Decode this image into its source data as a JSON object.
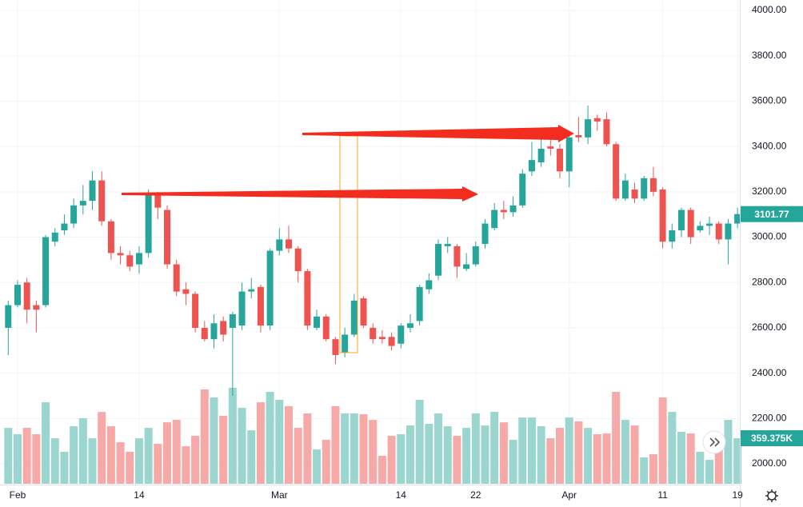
{
  "chart_data": {
    "type": "candlestick",
    "categories": [
      null,
      "Feb",
      null,
      null,
      null,
      null,
      null,
      null,
      null,
      null,
      null,
      null,
      null,
      null,
      "14",
      null,
      null,
      null,
      null,
      null,
      null,
      null,
      null,
      null,
      null,
      null,
      null,
      null,
      null,
      "Mar",
      null,
      null,
      null,
      null,
      null,
      null,
      null,
      null,
      null,
      null,
      null,
      null,
      "14",
      null,
      null,
      null,
      null,
      null,
      null,
      null,
      "22",
      null,
      null,
      null,
      null,
      null,
      null,
      null,
      null,
      null,
      "Apr",
      null,
      null,
      null,
      null,
      null,
      null,
      null,
      null,
      null,
      "11",
      null,
      null,
      null,
      null,
      null,
      null,
      null,
      "19"
    ],
    "open": [
      2600,
      2700,
      2800,
      2700,
      2700,
      2980,
      3030,
      3060,
      3140,
      3160,
      3250,
      3070,
      2930,
      2920,
      2880,
      2930,
      3190,
      3120,
      2880,
      2770,
      2750,
      2600,
      2550,
      2630,
      2600,
      2610,
      2760,
      2780,
      2610,
      2940,
      2990,
      2950,
      2850,
      2600,
      2650,
      2550,
      2490,
      2570,
      2730,
      2600,
      2560,
      2560,
      2530,
      2600,
      2630,
      2770,
      2830,
      2960,
      2960,
      2860,
      2880,
      2970,
      3040,
      3120,
      3110,
      3140,
      3290,
      3330,
      3400,
      3390,
      3290,
      3450,
      3440,
      3525,
      3520,
      3410,
      3170,
      3210,
      3170,
      3260,
      3210,
      2980,
      3030,
      3120,
      3030,
      3050,
      3060,
      2990,
      3060
    ],
    "high": [
      2720,
      2810,
      2820,
      2720,
      3010,
      3040,
      3100,
      3170,
      3230,
      3290,
      3290,
      3080,
      2960,
      2940,
      2960,
      3210,
      3200,
      3140,
      2900,
      2800,
      2760,
      2630,
      2660,
      2650,
      2670,
      2800,
      2820,
      2790,
      2950,
      3040,
      3050,
      2960,
      2860,
      2680,
      2660,
      2560,
      2600,
      2750,
      2740,
      2620,
      2590,
      2580,
      2620,
      2660,
      2790,
      2840,
      2990,
      3000,
      2970,
      2930,
      2980,
      3080,
      3150,
      3160,
      3180,
      3300,
      3420,
      3450,
      3460,
      3410,
      3460,
      3530,
      3580,
      3540,
      3550,
      3420,
      3280,
      3240,
      3270,
      3310,
      3220,
      3060,
      3130,
      3130,
      3070,
      3090,
      3070,
      3080,
      3130
    ],
    "low": [
      2480,
      2690,
      2620,
      2580,
      2690,
      2960,
      3010,
      3040,
      3100,
      3120,
      3050,
      2900,
      2880,
      2850,
      2840,
      2910,
      3080,
      2860,
      2740,
      2700,
      2580,
      2540,
      2510,
      2540,
      2300,
      2590,
      2730,
      2580,
      2590,
      2920,
      2930,
      2800,
      2590,
      2590,
      2540,
      2440,
      2470,
      2560,
      2600,
      2530,
      2530,
      2500,
      2510,
      2580,
      2610,
      2750,
      2810,
      2930,
      2820,
      2850,
      2870,
      2950,
      3030,
      3080,
      3090,
      3130,
      3270,
      3310,
      3360,
      3260,
      3220,
      3420,
      3410,
      3470,
      3400,
      3160,
      3160,
      3150,
      3160,
      3180,
      2950,
      2950,
      3000,
      2970,
      3020,
      3010,
      2970,
      2880,
      3040
    ],
    "close": [
      2700,
      2790,
      2680,
      2680,
      3000,
      3020,
      3060,
      3140,
      3160,
      3250,
      3070,
      2930,
      2920,
      2870,
      2930,
      3190,
      3130,
      2880,
      2760,
      2750,
      2600,
      2550,
      2620,
      2570,
      2660,
      2760,
      2770,
      2610,
      2940,
      2990,
      2950,
      2850,
      2610,
      2650,
      2550,
      2480,
      2570,
      2720,
      2610,
      2550,
      2550,
      2520,
      2610,
      2620,
      2780,
      2810,
      2970,
      2970,
      2870,
      2880,
      2960,
      3060,
      3120,
      3110,
      3140,
      3280,
      3340,
      3390,
      3390,
      3290,
      3440,
      3440,
      3520,
      3510,
      3410,
      3170,
      3250,
      3170,
      3260,
      3200,
      2980,
      3030,
      3120,
      3000,
      3050,
      3060,
      2990,
      3060,
      3101.77
    ],
    "up_color": "#26a69a",
    "down_color": "#ef5350",
    "ylim": [
      1912,
      4046
    ],
    "yticks": [
      {
        "value": 2000,
        "label": "2000.00"
      },
      {
        "value": 2200,
        "label": "2200.00"
      },
      {
        "value": 2400,
        "label": "2400.00"
      },
      {
        "value": 2600,
        "label": "2600.00"
      },
      {
        "value": 2800,
        "label": "2800.00"
      },
      {
        "value": 3000,
        "label": "3000.00"
      },
      {
        "value": 3200,
        "label": "3200.00"
      },
      {
        "value": 3400,
        "label": "3400.00"
      },
      {
        "value": 3600,
        "label": "3600.00"
      },
      {
        "value": 3800,
        "label": "3800.00"
      },
      {
        "value": 4000,
        "label": "4000.00"
      }
    ],
    "grid": true,
    "y2lim": [
      0,
      3815
    ],
    "series": [
      {
        "axis": "y2",
        "up_color": "#9bd5cf",
        "down_color": "#f6a9a7",
        "values": [
          441,
          391,
          441,
          391,
          643,
          359,
          252,
          454,
          517,
          359,
          567,
          454,
          328,
          252,
          359,
          441,
          315,
          485,
          504,
          296,
          378,
          744,
          681,
          536,
          757,
          599,
          422,
          643,
          725,
          662,
          612,
          441,
          555,
          271,
          347,
          612,
          555,
          555,
          549,
          504,
          221,
          378,
          391,
          460,
          662,
          473,
          555,
          454,
          378,
          441,
          555,
          460,
          567,
          485,
          347,
          523,
          523,
          454,
          359,
          441,
          523,
          492,
          441,
          391,
          397,
          725,
          504,
          460,
          208,
          233,
          681,
          567,
          410,
          397,
          252,
          189,
          284,
          504,
          359.375
        ],
        "value_labels": [
          null,
          null,
          null,
          null,
          null,
          null,
          null,
          null,
          null,
          null,
          null,
          null,
          null,
          null,
          null,
          null,
          null,
          null,
          null,
          null,
          null,
          null,
          null,
          null,
          null,
          null,
          null,
          null,
          null,
          null,
          null,
          null,
          null,
          null,
          null,
          null,
          null,
          null,
          null,
          null,
          null,
          null,
          null,
          null,
          null,
          null,
          null,
          null,
          null,
          null,
          null,
          null,
          null,
          null,
          null,
          null,
          null,
          null,
          null,
          null,
          null,
          null,
          null,
          null,
          null,
          null,
          null,
          null,
          null,
          null,
          null,
          null,
          null,
          null,
          null,
          null,
          null,
          null,
          "359.375K"
        ]
      }
    ]
  }
}
